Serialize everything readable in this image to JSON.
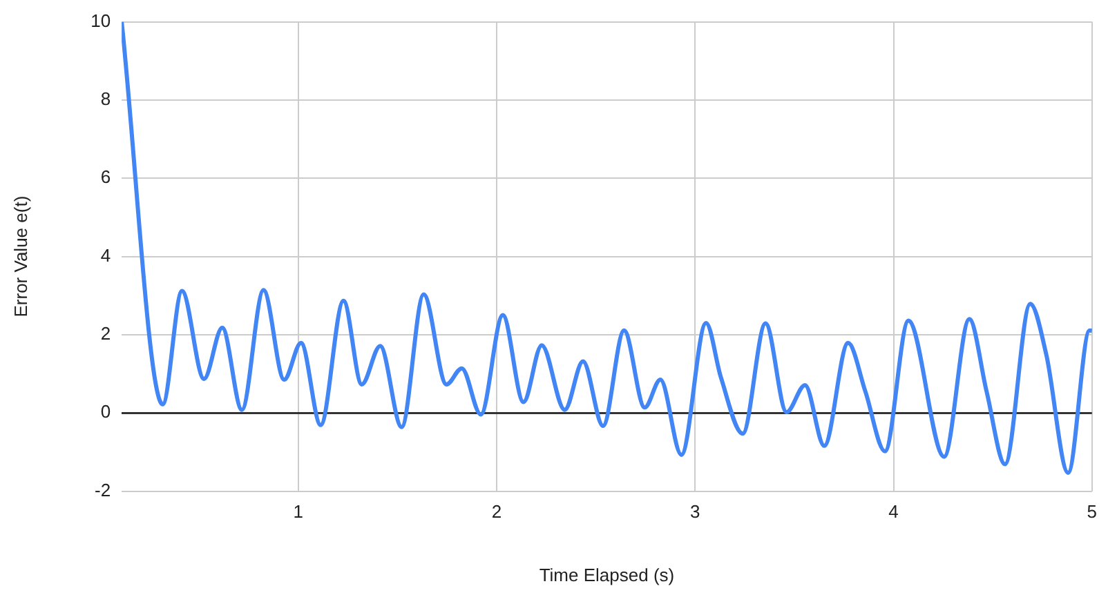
{
  "chart_data": {
    "type": "line",
    "xlabel": "Time Elapsed (s)",
    "ylabel": "Error Value e(t)",
    "x": [
      0.11,
      0.317,
      0.414,
      0.525,
      0.617,
      0.716,
      0.825,
      0.929,
      1.014,
      1.113,
      1.228,
      1.32,
      1.413,
      1.521,
      1.632,
      1.747,
      1.824,
      1.92,
      2.031,
      2.135,
      2.227,
      2.343,
      2.435,
      2.536,
      2.642,
      2.746,
      2.825,
      2.931,
      3.055,
      3.13,
      3.24,
      3.355,
      3.461,
      3.554,
      3.651,
      3.771,
      3.858,
      3.957,
      4.075,
      4.255,
      4.382,
      4.469,
      4.562,
      4.689,
      4.77,
      4.88,
      4.988,
      5
    ],
    "series": [
      {
        "color": "#4285f4",
        "values": [
          10,
          0.22,
          3.12,
          0.87,
          2.18,
          0.08,
          3.14,
          0.85,
          1.79,
          -0.31,
          2.87,
          0.73,
          1.71,
          -0.36,
          3.03,
          0.73,
          1.14,
          -0.04,
          2.5,
          0.28,
          1.73,
          0.08,
          1.32,
          -0.33,
          2.11,
          0.14,
          0.85,
          -1.07,
          2.3,
          0.91,
          -0.53,
          2.29,
          0.02,
          0.71,
          -0.84,
          1.79,
          0.55,
          -0.98,
          2.36,
          -1.12,
          2.4,
          0.55,
          -1.31,
          2.79,
          1.49,
          -1.53,
          2.11,
          2.1
        ]
      }
    ],
    "xlim": [
      0.11,
      5
    ],
    "xticks": [
      1,
      2,
      3,
      4,
      5
    ],
    "ylim": [
      -2,
      10
    ],
    "yticks": [
      -2,
      0,
      2,
      4,
      6,
      8,
      10
    ],
    "grid": true,
    "legend": false,
    "marker": "none",
    "line_style": "solid"
  }
}
